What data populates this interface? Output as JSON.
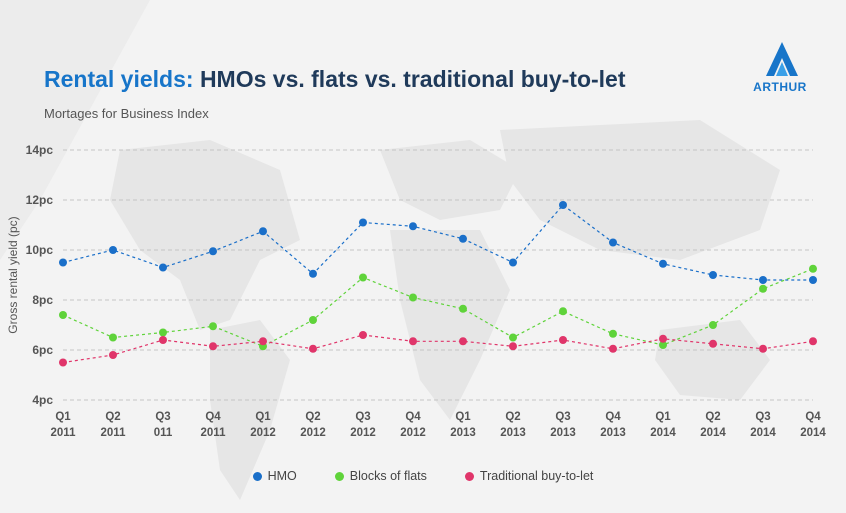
{
  "header": {
    "title_accent": "Rental yields:",
    "title_rest": "HMOs vs. flats vs. traditional buy-to-let",
    "subtitle": "Mortages for Business Index"
  },
  "brand": {
    "logo_text": "ARTHUR"
  },
  "colors": {
    "accent": "#1775c9",
    "title": "#1f3a5a",
    "hmo": "#1a6fc9",
    "flats": "#5fd33a",
    "btl": "#e0356a"
  },
  "chart_data": {
    "type": "line",
    "title": "Rental yields: HMOs vs. flats vs. traditional buy-to-let",
    "subtitle": "Mortages for Business Index",
    "xlabel": "",
    "ylabel": "Gross rental yield (pc)",
    "ylim": [
      4,
      14
    ],
    "yticks": [
      {
        "value": 4,
        "label": "4pc"
      },
      {
        "value": 6,
        "label": "6pc"
      },
      {
        "value": 8,
        "label": "8pc"
      },
      {
        "value": 10,
        "label": "10pc"
      },
      {
        "value": 12,
        "label": "12pc"
      },
      {
        "value": 14,
        "label": "14pc"
      }
    ],
    "grid": true,
    "categories": [
      [
        "Q1",
        "2011"
      ],
      [
        "Q2",
        "2011"
      ],
      [
        "Q3",
        "011"
      ],
      [
        "Q4",
        "2011"
      ],
      [
        "Q1",
        "2012"
      ],
      [
        "Q2",
        "2012"
      ],
      [
        "Q3",
        "2012"
      ],
      [
        "Q4",
        "2012"
      ],
      [
        "Q1",
        "2013"
      ],
      [
        "Q2",
        "2013"
      ],
      [
        "Q3",
        "2013"
      ],
      [
        "Q4",
        "2013"
      ],
      [
        "Q1",
        "2014"
      ],
      [
        "Q2",
        "2014"
      ],
      [
        "Q3",
        "2014"
      ],
      [
        "Q4",
        "2014"
      ]
    ],
    "series": [
      {
        "name": "HMO",
        "color": "#1a6fc9",
        "values": [
          9.5,
          10.0,
          9.3,
          9.95,
          10.75,
          9.05,
          11.1,
          10.95,
          10.45,
          9.5,
          11.8,
          10.3,
          9.45,
          9.0,
          8.8,
          8.8
        ]
      },
      {
        "name": "Blocks of flats",
        "color": "#5fd33a",
        "values": [
          7.4,
          6.5,
          6.7,
          6.95,
          6.15,
          7.2,
          8.9,
          8.1,
          7.65,
          6.5,
          7.55,
          6.65,
          6.2,
          7.0,
          8.45,
          9.25
        ]
      },
      {
        "name": "Traditional buy-to-let",
        "color": "#e0356a",
        "values": [
          5.5,
          5.8,
          6.4,
          6.15,
          6.35,
          6.05,
          6.6,
          6.35,
          6.35,
          6.15,
          6.4,
          6.05,
          6.45,
          6.25,
          6.05,
          6.35
        ]
      }
    ],
    "legend": "bottom-center"
  }
}
